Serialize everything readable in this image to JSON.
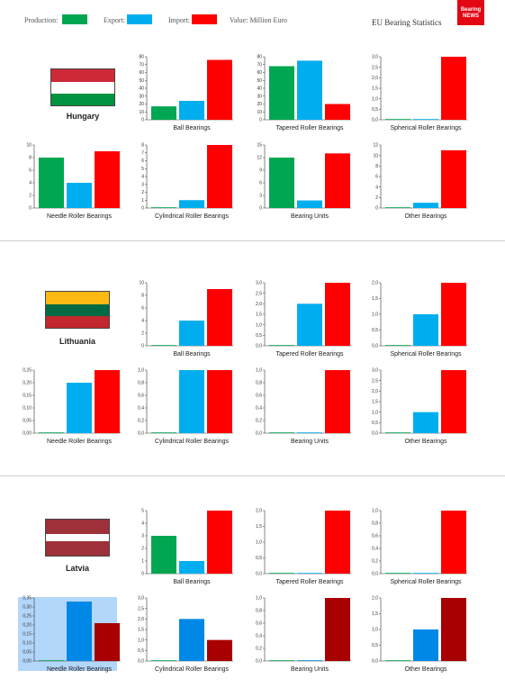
{
  "header": {
    "legend": [
      {
        "label": "Production:",
        "color": "#00a651"
      },
      {
        "label": "Export:",
        "color": "#00aeef"
      },
      {
        "label": "Import:",
        "color": "#ff0000"
      }
    ],
    "unit_label": "Value: Million Euro",
    "site_title": "EU Bearing Statistics",
    "logo_text": "Bearing NEWS"
  },
  "countries": [
    {
      "name": "Hungary",
      "flag": [
        "#ce2939",
        "#ffffff",
        "#00923f"
      ]
    },
    {
      "name": "Lithuania",
      "flag": [
        "#fdb913",
        "#006a44",
        "#c1272d"
      ]
    },
    {
      "name": "Latvia",
      "flag": [
        "#9e3039",
        "#ffffff",
        "#9e3039"
      ]
    }
  ],
  "chart_data": [
    {
      "type": "bar",
      "country": "Hungary",
      "caption": "Ball Bearings",
      "ylim": [
        0,
        80
      ],
      "ticks": [
        "0",
        "10",
        "20",
        "30",
        "40",
        "50",
        "60",
        "70",
        "80"
      ],
      "values": [
        17,
        24,
        76
      ]
    },
    {
      "type": "bar",
      "country": "Hungary",
      "caption": "Tapered Roller Bearings",
      "ylim": [
        0,
        80
      ],
      "ticks": [
        "0",
        "10",
        "20",
        "30",
        "40",
        "50",
        "60",
        "70",
        "80"
      ],
      "values": [
        68,
        75,
        20
      ]
    },
    {
      "type": "bar",
      "country": "Hungary",
      "caption": "Spherical Roller Bearings",
      "ylim": [
        0,
        3
      ],
      "ticks": [
        "0,0",
        "0,5",
        "1,0",
        "1,5",
        "2,0",
        "2,5",
        "3,0"
      ],
      "values": [
        0,
        0,
        3
      ]
    },
    {
      "type": "bar",
      "country": "Hungary",
      "caption": "Needle Roller Bearings",
      "ylim": [
        0,
        10
      ],
      "ticks": [
        "0",
        "2",
        "4",
        "6",
        "8",
        "10"
      ],
      "values": [
        8,
        4,
        9
      ]
    },
    {
      "type": "bar",
      "country": "Hungary",
      "caption": "Cylindrical Roller Bearings",
      "ylim": [
        0,
        8
      ],
      "ticks": [
        "0",
        "1",
        "2",
        "3",
        "4",
        "5",
        "6",
        "7",
        "8"
      ],
      "values": [
        0,
        1,
        8
      ]
    },
    {
      "type": "bar",
      "country": "Hungary",
      "caption": "Bearing Units",
      "ylim": [
        0,
        15
      ],
      "ticks": [
        "0",
        "3",
        "6",
        "9",
        "12",
        "15"
      ],
      "values": [
        12,
        1.8,
        13
      ]
    },
    {
      "type": "bar",
      "country": "Hungary",
      "caption": "Other Bearings",
      "ylim": [
        0,
        12
      ],
      "ticks": [
        "0",
        "2",
        "4",
        "6",
        "8",
        "10",
        "12"
      ],
      "values": [
        0,
        1,
        11
      ]
    },
    {
      "type": "bar",
      "country": "Lithuania",
      "caption": "Ball Bearings",
      "ylim": [
        0,
        10
      ],
      "ticks": [
        "0",
        "2",
        "4",
        "6",
        "8",
        "10"
      ],
      "values": [
        0,
        4,
        9
      ]
    },
    {
      "type": "bar",
      "country": "Lithuania",
      "caption": "Tapered Roller Bearings",
      "ylim": [
        0,
        3
      ],
      "ticks": [
        "0,0",
        "0,5",
        "1,0",
        "1,5",
        "2,0",
        "2,5",
        "3,0"
      ],
      "values": [
        0,
        2,
        3
      ]
    },
    {
      "type": "bar",
      "country": "Lithuania",
      "caption": "Spherical Roller Bearings",
      "ylim": [
        0,
        2
      ],
      "ticks": [
        "0,0",
        "0,5",
        "1,0",
        "1,5",
        "2,0"
      ],
      "values": [
        0,
        1,
        2
      ]
    },
    {
      "type": "bar",
      "country": "Lithuania",
      "caption": "Needle Roller Bearings",
      "ylim": [
        0,
        0.25
      ],
      "ticks": [
        "0,00",
        "0,05",
        "0,10",
        "0,15",
        "0,20",
        "0,25"
      ],
      "values": [
        0,
        0.2,
        0.25
      ]
    },
    {
      "type": "bar",
      "country": "Lithuania",
      "caption": "Cylindrical Roller Bearings",
      "ylim": [
        0,
        1
      ],
      "ticks": [
        "0,0",
        "0,2",
        "0,4",
        "0,6",
        "0,8",
        "1,0"
      ],
      "values": [
        0,
        1,
        1
      ]
    },
    {
      "type": "bar",
      "country": "Lithuania",
      "caption": "Bearing Units",
      "ylim": [
        0,
        1
      ],
      "ticks": [
        "0,0",
        "0,2",
        "0,4",
        "0,6",
        "0,8",
        "1,0"
      ],
      "values": [
        0,
        0,
        1
      ]
    },
    {
      "type": "bar",
      "country": "Lithuania",
      "caption": "Other Bearings",
      "ylim": [
        0,
        3
      ],
      "ticks": [
        "0,0",
        "0,5",
        "1,0",
        "1,5",
        "2,0",
        "2,5",
        "3,0"
      ],
      "values": [
        0,
        1,
        3
      ]
    },
    {
      "type": "bar",
      "country": "Latvia",
      "caption": "Ball Bearings",
      "ylim": [
        0,
        5
      ],
      "ticks": [
        "0",
        "1",
        "2",
        "3",
        "4",
        "5"
      ],
      "values": [
        3,
        1,
        5
      ]
    },
    {
      "type": "bar",
      "country": "Latvia",
      "caption": "Tapered Roller Bearings",
      "ylim": [
        0,
        2
      ],
      "ticks": [
        "0,0",
        "0,5",
        "1,0",
        "1,5",
        "2,0"
      ],
      "values": [
        0,
        0,
        2
      ]
    },
    {
      "type": "bar",
      "country": "Latvia",
      "caption": "Spherical Roller Bearings",
      "ylim": [
        0,
        1
      ],
      "ticks": [
        "0,0",
        "0,2",
        "0,4",
        "0,6",
        "0,8",
        "1,0"
      ],
      "values": [
        0,
        0,
        1
      ]
    },
    {
      "type": "bar",
      "country": "Latvia",
      "caption": "Needle Roller Bearings",
      "ylim": [
        0,
        0.35
      ],
      "ticks": [
        "0,00",
        "0,05",
        "0,10",
        "0,15",
        "0,20",
        "0,25",
        "0,30",
        "0,35"
      ],
      "values": [
        0,
        0.33,
        0.21
      ],
      "highlight": true,
      "colors": [
        "#00a651",
        "#0088e6",
        "#a80000"
      ]
    },
    {
      "type": "bar",
      "country": "Latvia",
      "caption": "Cylindrical Roller Bearings",
      "ylim": [
        0,
        3
      ],
      "ticks": [
        "0,0",
        "0,5",
        "1,0",
        "1,5",
        "2,0",
        "2,5",
        "3,0"
      ],
      "values": [
        0,
        2,
        1
      ],
      "colors": [
        "#00a651",
        "#0088e6",
        "#a80000"
      ]
    },
    {
      "type": "bar",
      "country": "Latvia",
      "caption": "Bearing Units",
      "ylim": [
        0,
        1
      ],
      "ticks": [
        "0,0",
        "0,2",
        "0,4",
        "0,6",
        "0,8",
        "1,0"
      ],
      "values": [
        0,
        0,
        1
      ],
      "colors": [
        "#00a651",
        "#0088e6",
        "#a80000"
      ]
    },
    {
      "type": "bar",
      "country": "Latvia",
      "caption": "Other Bearings",
      "ylim": [
        0,
        2
      ],
      "ticks": [
        "0,0",
        "0,5",
        "1,0",
        "1,5",
        "2,0"
      ],
      "values": [
        0,
        1,
        2
      ],
      "colors": [
        "#00a651",
        "#0088e6",
        "#a80000"
      ]
    }
  ]
}
